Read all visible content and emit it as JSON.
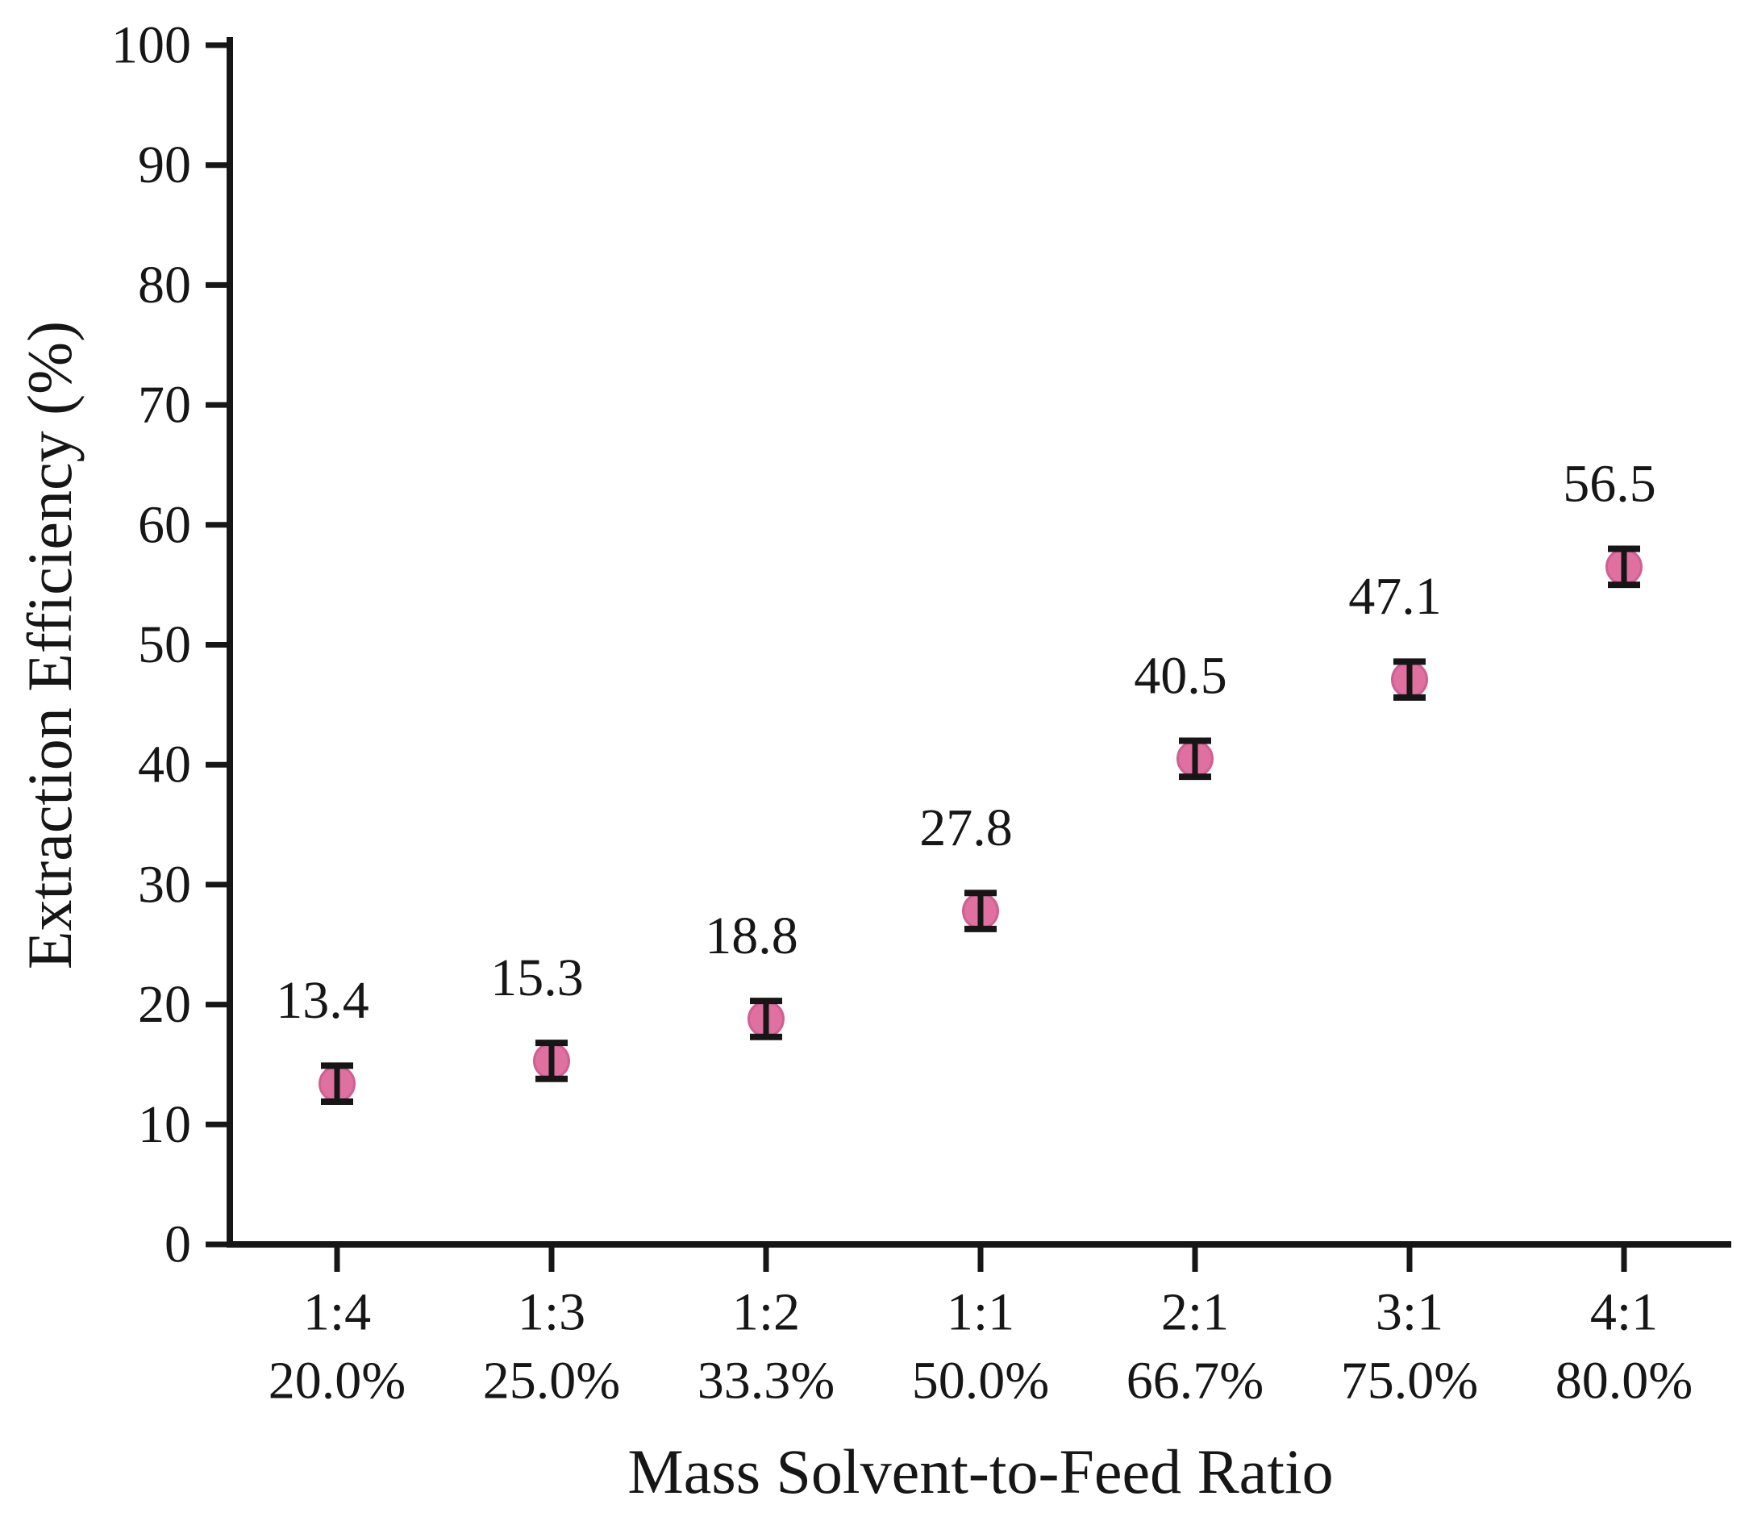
{
  "figure": {
    "background": "#ffffff",
    "text_color": "#161616"
  },
  "chart_data": {
    "type": "scatter",
    "title": "",
    "xlabel": "Mass Solvent-to-Feed Ratio",
    "ylabel": "Extraction Efficiency (%)",
    "ylim": [
      0,
      100
    ],
    "yticks": [
      "0",
      "10",
      "20",
      "30",
      "40",
      "50",
      "60",
      "70",
      "80",
      "90",
      "100"
    ],
    "grid": false,
    "legend": false,
    "categories": [
      {
        "ratio": "1:4",
        "percent": "20.0%"
      },
      {
        "ratio": "1:3",
        "percent": "25.0%"
      },
      {
        "ratio": "1:2",
        "percent": "33.3%"
      },
      {
        "ratio": "1:1",
        "percent": "50.0%"
      },
      {
        "ratio": "2:1",
        "percent": "66.7%"
      },
      {
        "ratio": "3:1",
        "percent": "75.0%"
      },
      {
        "ratio": "4:1",
        "percent": "80.0%"
      }
    ],
    "series": [
      {
        "name": "Extraction Efficiency",
        "values": [
          13.4,
          15.3,
          18.8,
          27.8,
          40.5,
          47.1,
          56.5
        ],
        "value_labels": [
          "13.4",
          "15.3",
          "18.8",
          "27.8",
          "40.5",
          "47.1",
          "56.5"
        ],
        "error": 1.5,
        "marker": "circle",
        "marker_color": "#e0709f",
        "marker_edge_color": "#d05f92",
        "errorbar_color": "#161616"
      }
    ],
    "text_color": "#161616"
  }
}
